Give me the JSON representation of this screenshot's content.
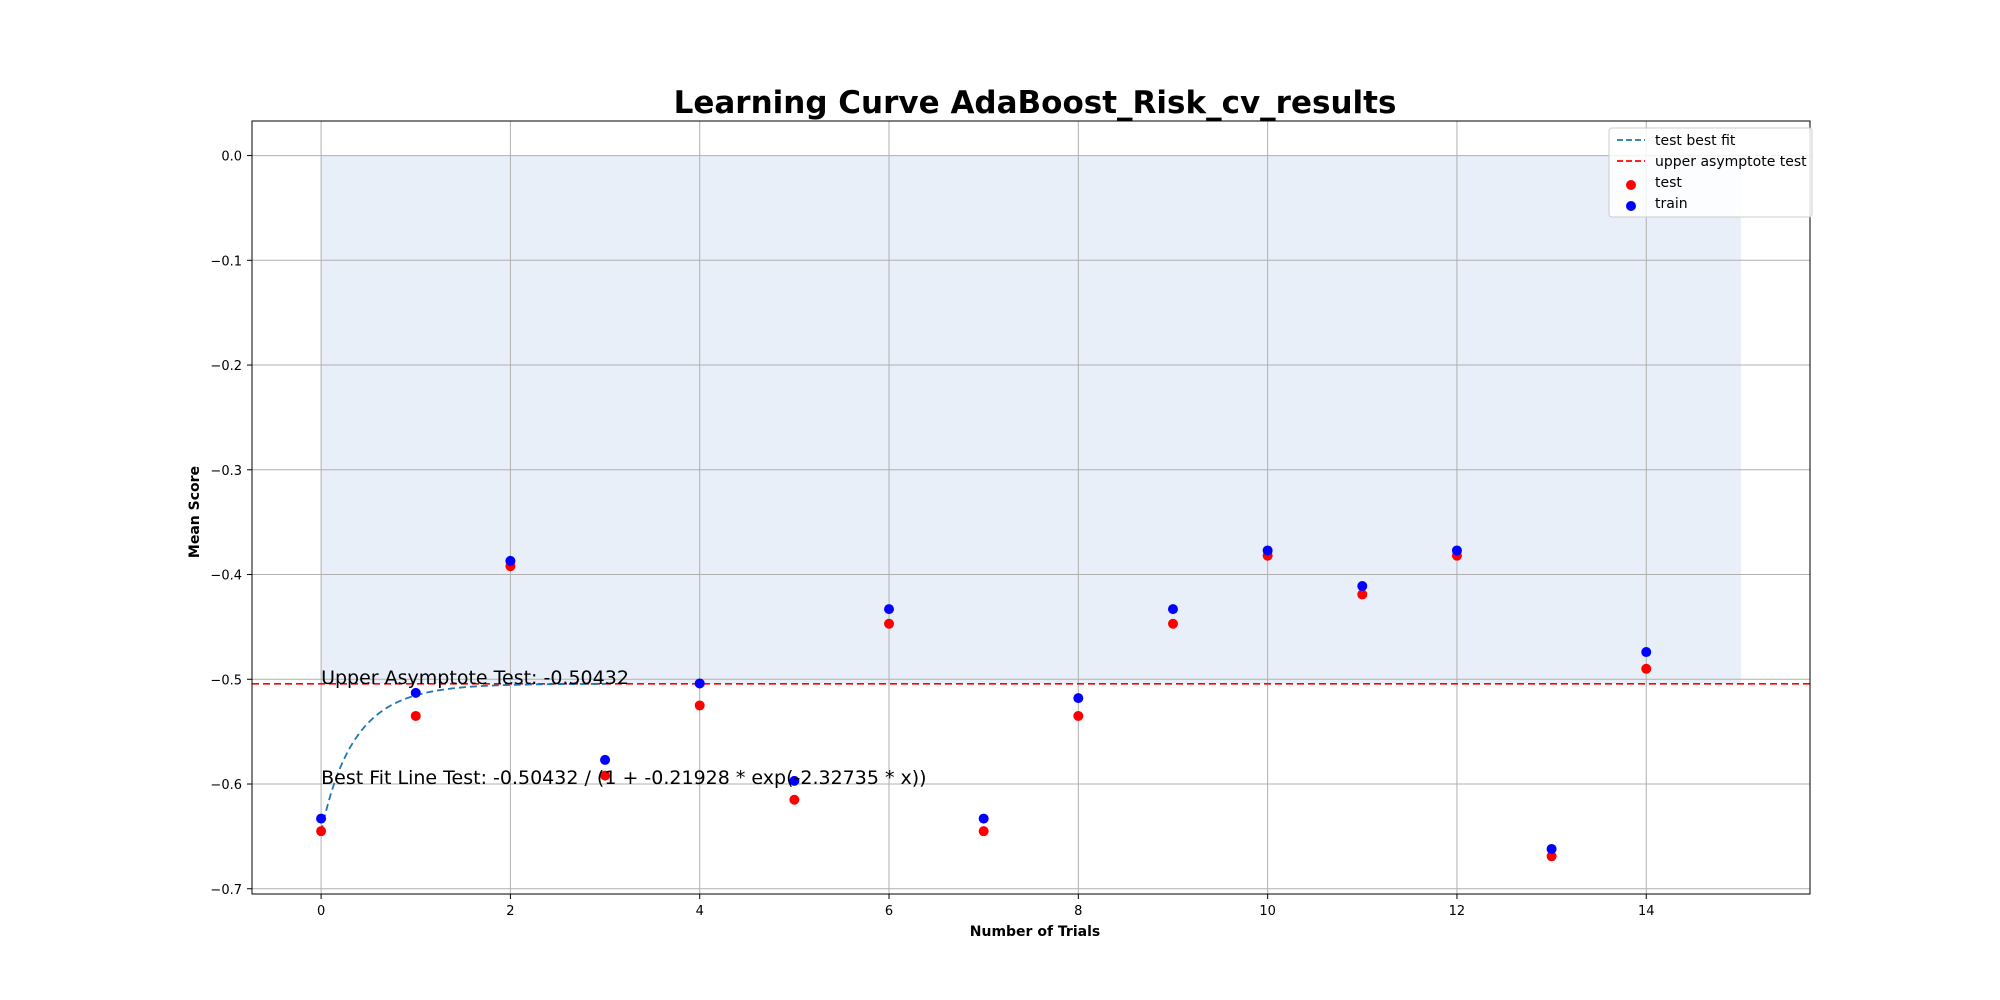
{
  "chart_data": {
    "type": "scatter",
    "title": "Learning Curve AdaBoost_Risk_cv_results",
    "xlabel": "Number of Trials",
    "ylabel": "Mean Score",
    "xlim": [
      -0.73,
      15.73
    ],
    "ylim": [
      -0.705,
      0.033
    ],
    "x_ticks": [
      0,
      2,
      4,
      6,
      8,
      10,
      12,
      14
    ],
    "x_tick_labels": [
      "0",
      "2",
      "4",
      "6",
      "8",
      "10",
      "12",
      "14"
    ],
    "y_ticks": [
      0.0,
      -0.1,
      -0.2,
      -0.3,
      -0.4,
      -0.5,
      -0.6,
      -0.7
    ],
    "y_tick_labels": [
      "0.0",
      "−0.1",
      "−0.2",
      "−0.3",
      "−0.4",
      "−0.5",
      "−0.6",
      "−0.7"
    ],
    "grid": true,
    "legend_position": "top-right",
    "shaded_region": {
      "x": [
        0,
        15
      ],
      "y": [
        -0.50432,
        0.0
      ],
      "color": "#e8eff8"
    },
    "asymptote": {
      "y": -0.50432,
      "name": "upper asymptote test",
      "color": "#ff0000",
      "style": "dashed"
    },
    "fit": {
      "name": "test best fit",
      "color": "#1f77b4",
      "style": "dashed",
      "a": -0.50432,
      "b": -0.21928,
      "c": -2.32735,
      "x_range": [
        0,
        3
      ]
    },
    "series": [
      {
        "name": "test",
        "color": "#ff0000",
        "x": [
          0,
          1,
          2,
          3,
          4,
          5,
          6,
          7,
          8,
          9,
          10,
          11,
          12,
          13,
          14
        ],
        "y": [
          -0.645,
          -0.535,
          -0.392,
          -0.592,
          -0.525,
          -0.615,
          -0.447,
          -0.645,
          -0.535,
          -0.447,
          -0.382,
          -0.419,
          -0.382,
          -0.669,
          -0.49
        ]
      },
      {
        "name": "train",
        "color": "#0000ff",
        "x": [
          0,
          1,
          2,
          3,
          4,
          5,
          6,
          7,
          8,
          9,
          10,
          11,
          12,
          13,
          14
        ],
        "y": [
          -0.633,
          -0.513,
          -0.387,
          -0.577,
          -0.504,
          -0.597,
          -0.433,
          -0.633,
          -0.518,
          -0.433,
          -0.377,
          -0.411,
          -0.377,
          -0.662,
          -0.474
        ]
      }
    ],
    "annotations": [
      {
        "text": "Upper Asymptote Test: -0.50432",
        "x": 0,
        "y": -0.50432
      },
      {
        "text": "Best Fit Line Test: -0.50432 / (1 + -0.21928 * exp(-2.32735 * x))",
        "x": 0,
        "y": -0.6
      }
    ]
  }
}
